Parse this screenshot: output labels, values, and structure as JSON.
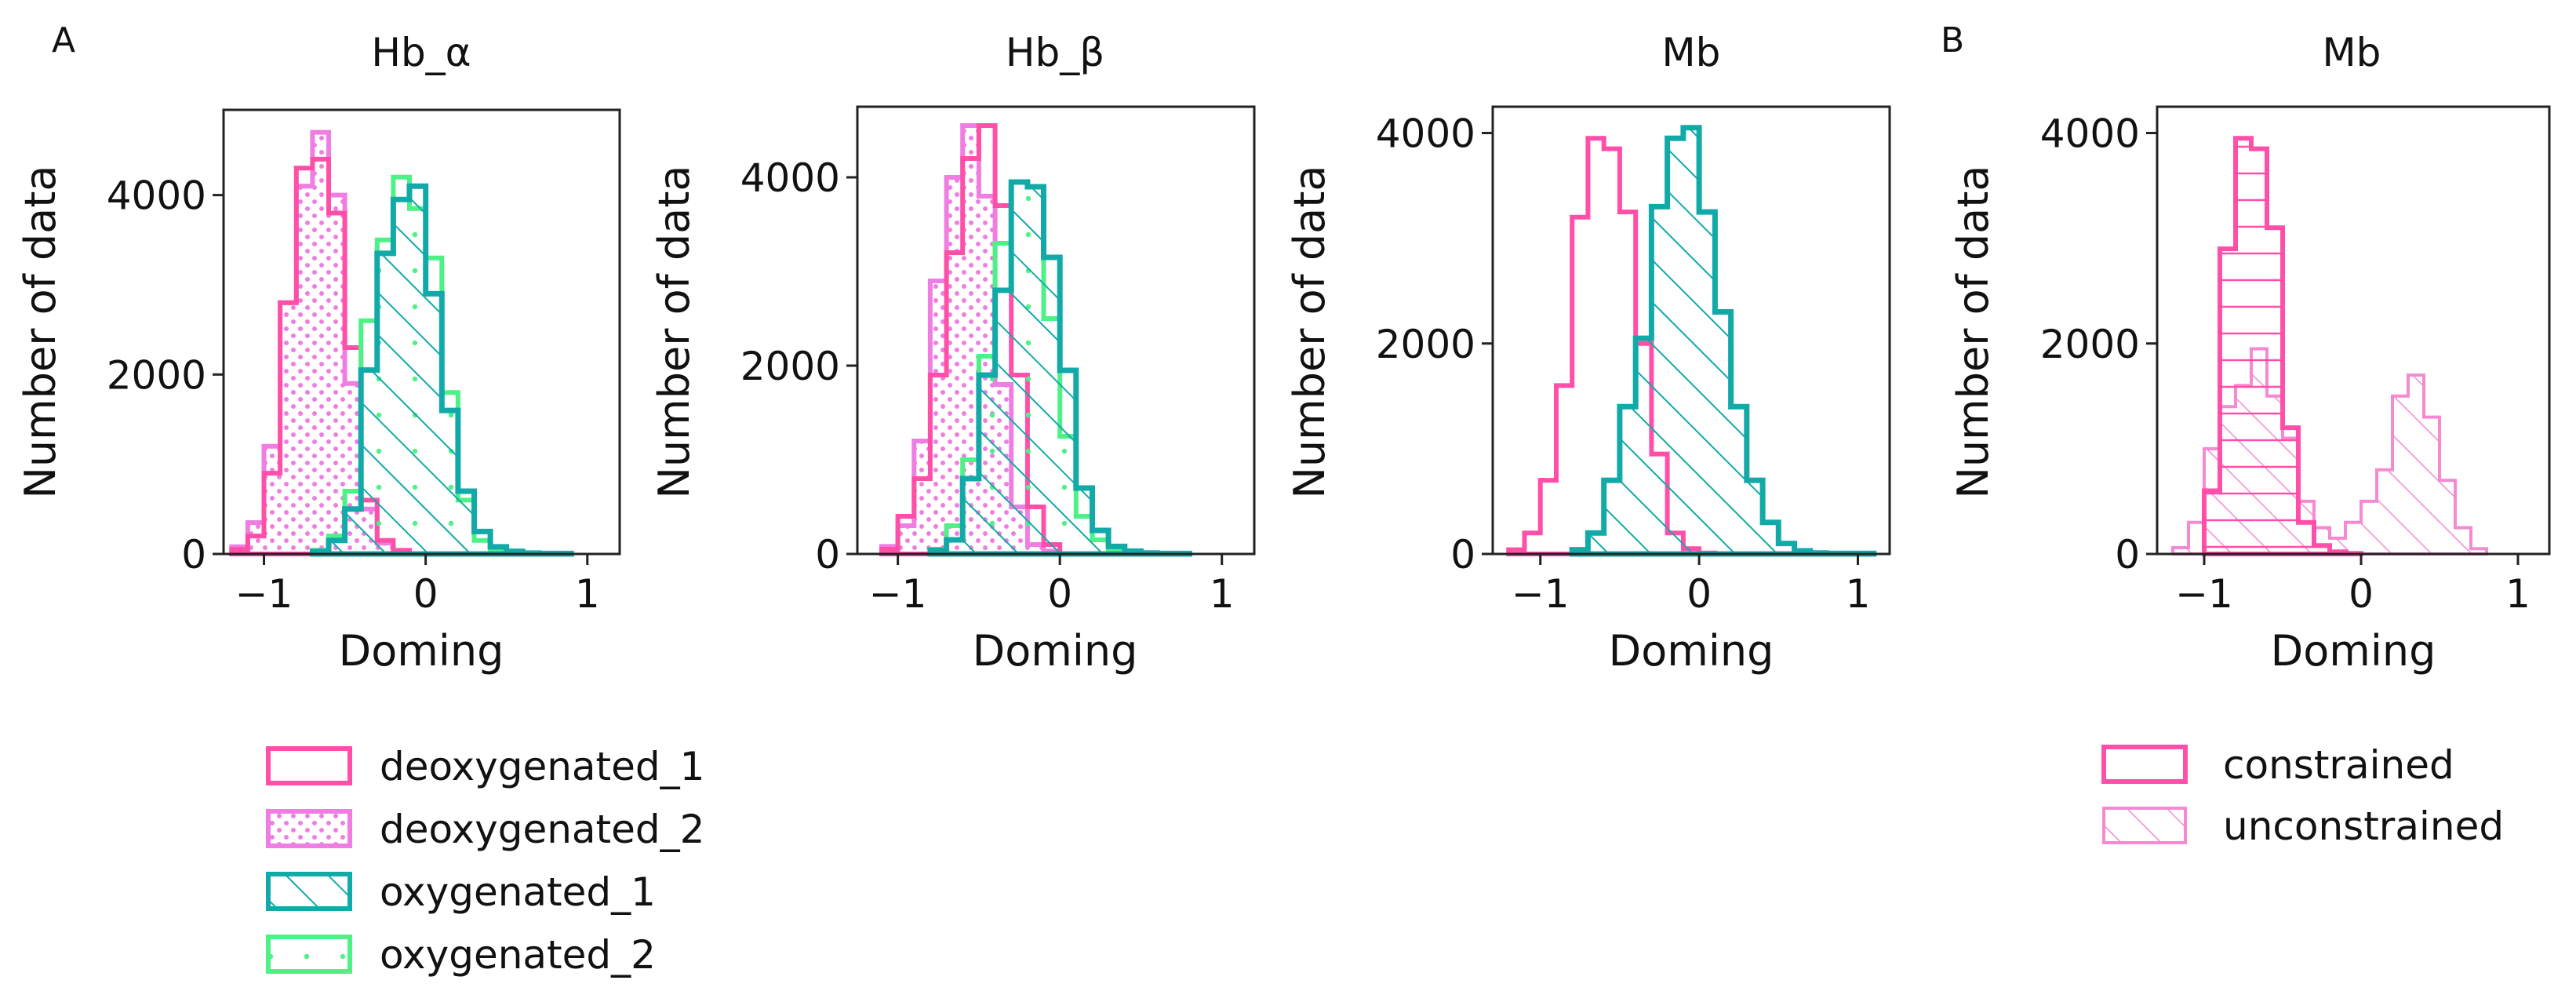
{
  "panel_labels": {
    "a": "A",
    "b": "B"
  },
  "colors": {
    "deoxy_1": "#ff4fa8",
    "deoxy_2": "#f07ee2",
    "oxy_1": "#12aaa8",
    "oxy_2": "#4cf286",
    "constrained": "#ff4fa8",
    "unconstrained": "#f58ad2"
  },
  "chart_data": [
    {
      "type": "histogram",
      "title": "Hb_α",
      "xlabel": "Doming",
      "ylabel": "Number of data",
      "xlim": [
        -1.25,
        1.2
      ],
      "ylim": [
        0,
        4950
      ],
      "xticks": [
        -1,
        0,
        1
      ],
      "yticks": [
        0,
        2000,
        4000
      ],
      "bin_width": 0.1,
      "series": [
        {
          "name": "deoxygenated_1",
          "style": "deoxy_1",
          "start": -1.2,
          "values": [
            50,
            200,
            900,
            2800,
            4300,
            4400,
            3800,
            2300,
            600,
            150,
            40
          ]
        },
        {
          "name": "deoxygenated_2",
          "style": "deoxy_2",
          "start": -1.2,
          "values": [
            80,
            350,
            1200,
            2800,
            4100,
            4700,
            4000,
            1900,
            500,
            120,
            30
          ]
        },
        {
          "name": "oxygenated_1",
          "style": "oxy_1",
          "start": -0.7,
          "values": [
            30,
            150,
            500,
            2050,
            3350,
            3950,
            4100,
            2900,
            1600,
            700,
            250,
            80,
            30,
            10,
            5,
            5
          ]
        },
        {
          "name": "oxygenated_2",
          "style": "oxy_2",
          "start": -0.7,
          "values": [
            40,
            200,
            700,
            2600,
            3500,
            4200,
            3850,
            3300,
            1800,
            600,
            150,
            50,
            20,
            10,
            5,
            5
          ]
        }
      ]
    },
    {
      "type": "histogram",
      "title": "Hb_β",
      "xlabel": "Doming",
      "ylabel": "Number of data",
      "xlim": [
        -1.25,
        1.2
      ],
      "ylim": [
        0,
        4750
      ],
      "xticks": [
        -1,
        0,
        1
      ],
      "yticks": [
        0,
        2000,
        4000
      ],
      "bin_width": 0.1,
      "series": [
        {
          "name": "deoxygenated_1",
          "style": "deoxy_1",
          "start": -1.1,
          "values": [
            50,
            400,
            800,
            1900,
            3200,
            4200,
            4550,
            3700,
            1900,
            500,
            100
          ]
        },
        {
          "name": "deoxygenated_2",
          "style": "deoxy_2",
          "start": -1.1,
          "values": [
            80,
            300,
            1200,
            2900,
            4000,
            4550,
            3800,
            1800,
            500,
            100,
            30
          ]
        },
        {
          "name": "oxygenated_1",
          "style": "oxy_1",
          "start": -0.8,
          "values": [
            40,
            150,
            800,
            1900,
            2800,
            3950,
            3900,
            3150,
            1950,
            700,
            250,
            80,
            30,
            10,
            5,
            5
          ]
        },
        {
          "name": "oxygenated_2",
          "style": "oxy_2",
          "start": -0.8,
          "values": [
            50,
            300,
            1000,
            2100,
            3300,
            3950,
            3900,
            2500,
            1250,
            400,
            150,
            50,
            20,
            5,
            5,
            5
          ]
        }
      ]
    },
    {
      "type": "histogram",
      "title": "Mb",
      "xlabel": "Doming",
      "ylabel": "Number of data",
      "xlim": [
        -1.3,
        1.2
      ],
      "ylim": [
        0,
        4250
      ],
      "xticks": [
        -1,
        0,
        1
      ],
      "yticks": [
        0,
        2000,
        4000
      ],
      "bin_width": 0.1,
      "series": [
        {
          "name": "deoxygenated_1",
          "style": "deoxy_1",
          "start": -1.2,
          "values": [
            40,
            200,
            700,
            1600,
            3200,
            3950,
            3850,
            3250,
            2000,
            950,
            200,
            50,
            10
          ]
        },
        {
          "name": "oxygenated_1",
          "style": "oxy_1",
          "start": -0.8,
          "values": [
            40,
            200,
            700,
            1400,
            2050,
            3300,
            3950,
            4050,
            3250,
            2300,
            1400,
            700,
            300,
            100,
            30,
            10,
            5,
            5,
            5
          ]
        }
      ]
    },
    {
      "type": "histogram",
      "title": "Mb",
      "xlabel": "Doming",
      "ylabel": "Number of data",
      "xlim": [
        -1.3,
        1.2
      ],
      "ylim": [
        0,
        4250
      ],
      "xticks": [
        -1,
        0,
        1
      ],
      "yticks": [
        0,
        2000,
        4000
      ],
      "bin_width": 0.1,
      "series": [
        {
          "name": "constrained",
          "style": "constrained",
          "start": -1.0,
          "values": [
            600,
            2900,
            3950,
            3850,
            3100,
            1200,
            300,
            80,
            20,
            5
          ]
        },
        {
          "name": "unconstrained",
          "style": "unconstrained",
          "start": -1.2,
          "values": [
            60,
            300,
            1000,
            1400,
            1600,
            1950,
            1500,
            1100,
            500,
            250,
            150,
            300,
            500,
            800,
            1500,
            1700,
            1300,
            700,
            250,
            50
          ]
        }
      ]
    }
  ],
  "legend_a": {
    "items": [
      {
        "label": "deoxygenated_1",
        "style": "deoxy_1"
      },
      {
        "label": "deoxygenated_2",
        "style": "deoxy_2"
      },
      {
        "label": "oxygenated_1",
        "style": "oxy_1"
      },
      {
        "label": "oxygenated_2",
        "style": "oxy_2"
      }
    ]
  },
  "legend_b": {
    "items": [
      {
        "label": "constrained",
        "style": "constrained"
      },
      {
        "label": "unconstrained",
        "style": "unconstrained"
      }
    ]
  }
}
